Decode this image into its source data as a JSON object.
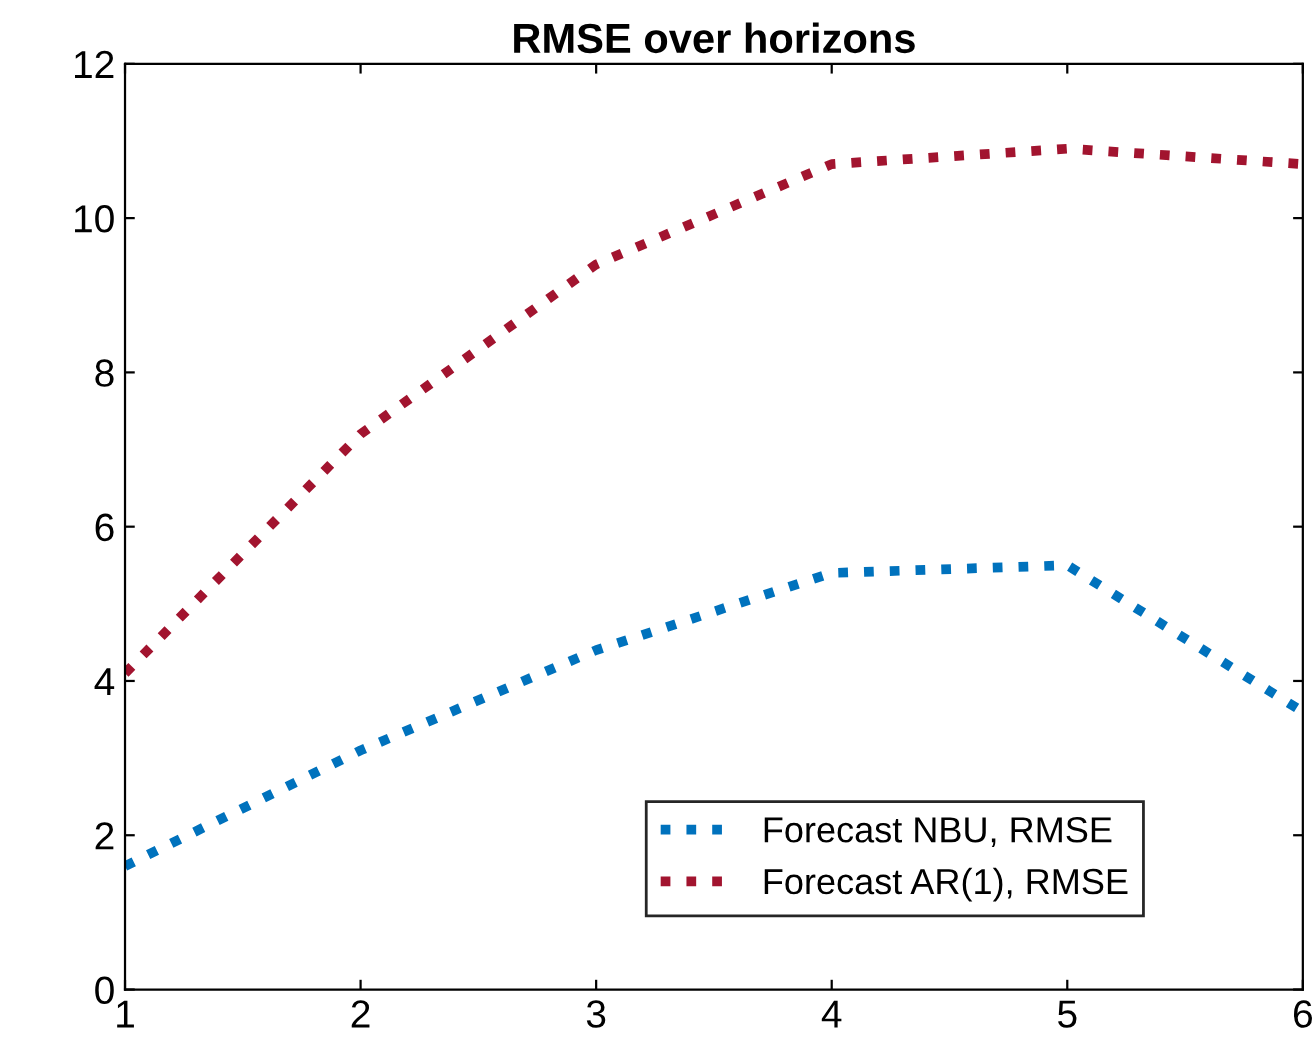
{
  "chart_data": {
    "type": "line",
    "title": "RMSE over horizons",
    "x": [
      1,
      2,
      3,
      4,
      5,
      6
    ],
    "series": [
      {
        "name": "Forecast NBU, RMSE",
        "color": "#0072bd",
        "values": [
          1.6,
          3.1,
          4.4,
          5.4,
          5.5,
          3.6
        ]
      },
      {
        "name": "Forecast AR(1), RMSE",
        "color": "#a2142f",
        "values": [
          4.1,
          7.2,
          9.4,
          10.7,
          10.9,
          10.7
        ]
      }
    ],
    "xlim": [
      1,
      6
    ],
    "xticks": [
      1,
      2,
      3,
      4,
      5,
      6
    ],
    "ylim": [
      0,
      12
    ],
    "yticks": [
      0,
      2,
      4,
      6,
      8,
      10,
      12
    ],
    "grid": false,
    "legend": "bottom right",
    "line_style": "dotted",
    "marker": "none"
  }
}
